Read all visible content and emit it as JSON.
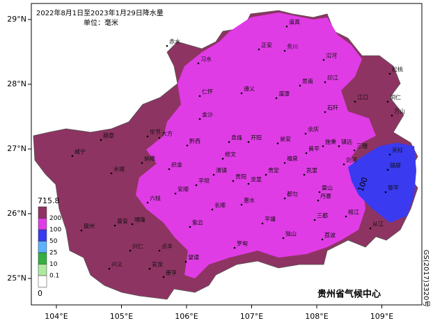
{
  "header": {
    "title": "2022年8月1日至2023年1月29日降水量",
    "unit": "单位：毫米"
  },
  "axes": {
    "lat": [
      {
        "value": 29,
        "label": "29°N"
      },
      {
        "value": 28,
        "label": "28°N"
      },
      {
        "value": 27,
        "label": "27°N"
      },
      {
        "value": 26,
        "label": "26°N"
      },
      {
        "value": 25,
        "label": "25°N"
      }
    ],
    "lon": [
      {
        "value": 104,
        "label": "104°E"
      },
      {
        "value": 105,
        "label": "105°E"
      },
      {
        "value": 106,
        "label": "106°E"
      },
      {
        "value": 107,
        "label": "107°E"
      },
      {
        "value": 108,
        "label": "108°E"
      },
      {
        "value": 109,
        "label": "109°E"
      }
    ]
  },
  "legend": {
    "max": 715.8,
    "min": 0,
    "levels": [
      {
        "value": 200,
        "color": "#8e3462"
      },
      {
        "value": 100,
        "color": "#e03ce6"
      },
      {
        "value": 50,
        "color": "#3a3af0"
      },
      {
        "value": 25,
        "color": "#5cb2ff"
      },
      {
        "value": 10,
        "color": "#33b040"
      },
      {
        "value": 0.1,
        "color": "#aeeaa0"
      }
    ],
    "bottom_color": "#ffffff"
  },
  "contour_label": "100",
  "credit": "贵州省气候中心",
  "map_number": "GS(2017)3320号",
  "cities": [
    "赤水",
    "习水",
    "正安",
    "道真",
    "务川",
    "沿河",
    "松桃",
    "印江",
    "江口",
    "铜仁",
    "万山",
    "思南",
    "湄潭",
    "遵义",
    "仁怀",
    "金沙",
    "毕节",
    "大方",
    "赫章",
    "威宁",
    "水城",
    "纳雍",
    "织金",
    "黔西",
    "息烽",
    "开阳",
    "瓮安",
    "余庆",
    "施秉",
    "镇远",
    "三穗",
    "天柱",
    "锦屏",
    "黎平",
    "从江",
    "榕江",
    "雷山",
    "剑河",
    "凯里",
    "丹寨",
    "三都",
    "都匀",
    "独山",
    "荔波",
    "平塘",
    "罗甸",
    "惠水",
    "长顺",
    "紫云",
    "望谟",
    "册亨",
    "安龙",
    "兴仁",
    "兴义",
    "贞丰",
    "晴隆",
    "普安",
    "盘州",
    "六枝",
    "安顺",
    "平坝",
    "清镇",
    "贵阳",
    "修文",
    "龙里",
    "贵定",
    "福泉",
    "黄平",
    "石阡"
  ]
}
